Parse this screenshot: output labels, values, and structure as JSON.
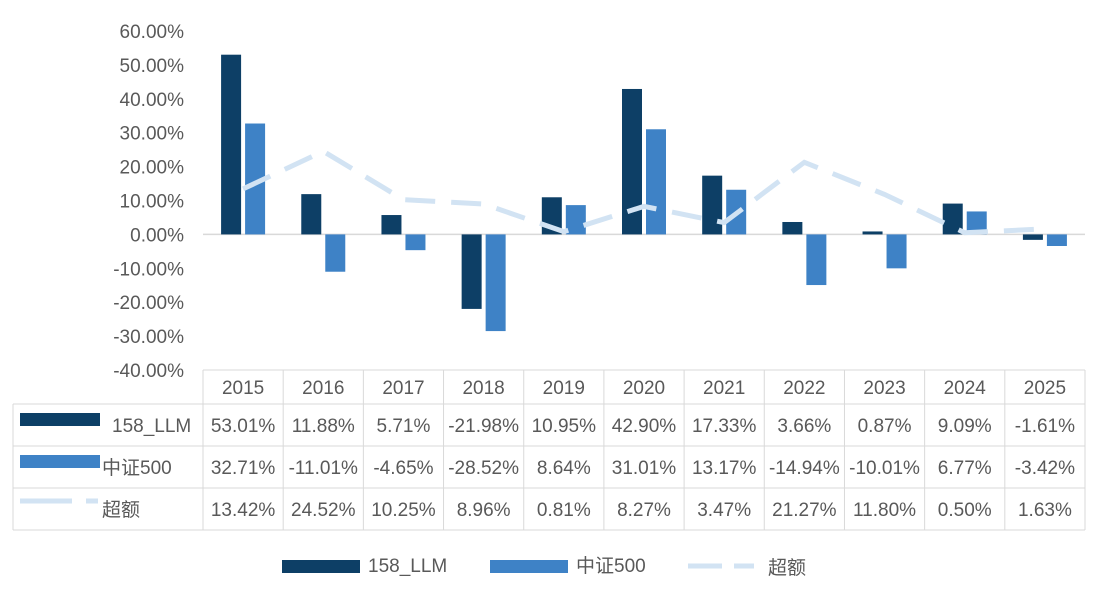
{
  "chart_data": {
    "type": "bar",
    "categories": [
      "2015",
      "2016",
      "2017",
      "2018",
      "2019",
      "2020",
      "2021",
      "2022",
      "2023",
      "2024",
      "2025"
    ],
    "ylim": [
      -40,
      60
    ],
    "yticks": [
      "60.00%",
      "50.00%",
      "40.00%",
      "30.00%",
      "20.00%",
      "10.00%",
      "0.00%",
      "-10.00%",
      "-20.00%",
      "-30.00%",
      "-40.00%"
    ],
    "ytick_values": [
      60,
      50,
      40,
      30,
      20,
      10,
      0,
      -10,
      -20,
      -30,
      -40
    ],
    "legend_position": "bottom",
    "data_table": true,
    "series": [
      {
        "name": "158_LLM",
        "kind": "bar",
        "color": "#0d3f66",
        "values": [
          53.01,
          11.88,
          5.71,
          -21.98,
          10.95,
          42.9,
          17.33,
          3.66,
          0.87,
          9.09,
          -1.61
        ],
        "labels": [
          "53.01%",
          "11.88%",
          "5.71%",
          "-21.98%",
          "10.95%",
          "42.90%",
          "17.33%",
          "3.66%",
          "0.87%",
          "9.09%",
          "-1.61%"
        ]
      },
      {
        "name": "中证500",
        "kind": "bar",
        "color": "#3e82c6",
        "values": [
          32.71,
          -11.01,
          -4.65,
          -28.52,
          8.64,
          31.01,
          13.17,
          -14.94,
          -10.01,
          6.77,
          -3.42
        ],
        "labels": [
          "32.71%",
          "-11.01%",
          "-4.65%",
          "-28.52%",
          "8.64%",
          "31.01%",
          "13.17%",
          "-14.94%",
          "-10.01%",
          "6.77%",
          "-3.42%"
        ]
      },
      {
        "name": "超额",
        "kind": "line-dashed",
        "color": "#d2e3f3",
        "values": [
          13.42,
          24.52,
          10.25,
          8.96,
          0.81,
          8.27,
          3.47,
          21.27,
          11.8,
          0.5,
          1.63
        ],
        "labels": [
          "13.42%",
          "24.52%",
          "10.25%",
          "8.96%",
          "0.81%",
          "8.27%",
          "3.47%",
          "21.27%",
          "11.80%",
          "0.50%",
          "1.63%"
        ]
      }
    ]
  }
}
